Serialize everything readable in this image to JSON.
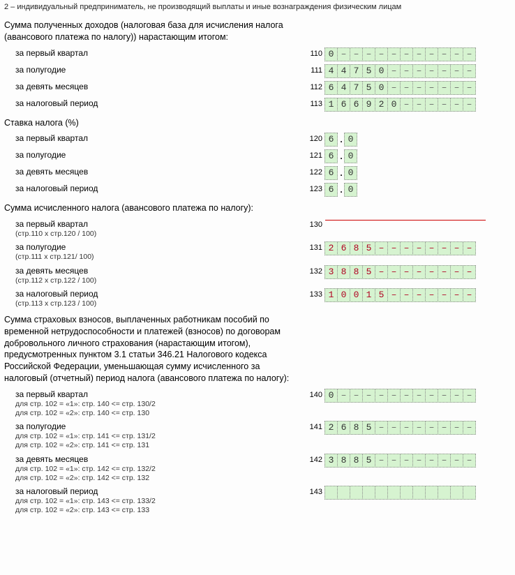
{
  "top_note": "2 – индивидуальный предприниматель, не производящий выплаты и иные вознаграждения физическим лицам",
  "sections": {
    "income": {
      "title": "Сумма полученных доходов (налоговая база для исчисления налога (авансового платежа по налогу)) нарастающим итогом:",
      "rows": [
        {
          "label": "за первый квартал",
          "code": "110",
          "digits": [
            "0",
            "–",
            "–",
            "–",
            "–",
            "–",
            "–",
            "–",
            "–",
            "–",
            "–",
            "–"
          ]
        },
        {
          "label": "за полугодие",
          "code": "111",
          "digits": [
            "4",
            "4",
            "7",
            "5",
            "0",
            "–",
            "–",
            "–",
            "–",
            "–",
            "–",
            "–"
          ]
        },
        {
          "label": "за девять месяцев",
          "code": "112",
          "digits": [
            "6",
            "4",
            "7",
            "5",
            "0",
            "–",
            "–",
            "–",
            "–",
            "–",
            "–",
            "–"
          ]
        },
        {
          "label": "за налоговый период",
          "code": "113",
          "digits": [
            "1",
            "6",
            "6",
            "9",
            "2",
            "0",
            "–",
            "–",
            "–",
            "–",
            "–",
            "–"
          ]
        }
      ]
    },
    "rate": {
      "title": "Ставка налога (%)",
      "rows": [
        {
          "label": "за первый квартал",
          "code": "120",
          "int": "6",
          "frac": "0"
        },
        {
          "label": "за полугодие",
          "code": "121",
          "int": "6",
          "frac": "0"
        },
        {
          "label": "за девять месяцев",
          "code": "122",
          "int": "6",
          "frac": "0"
        },
        {
          "label": "за налоговый период",
          "code": "123",
          "int": "6",
          "frac": "0"
        }
      ]
    },
    "tax": {
      "title": "Сумма исчисленного налога (авансового платежа по налогу):",
      "rows": [
        {
          "label": "за первый квартал",
          "sub": "(стр.110 x стр.120 / 100)",
          "code": "130",
          "redline": true
        },
        {
          "label": "за полугодие",
          "sub": "(стр.111 x стр.121/ 100)",
          "code": "131",
          "digits": [
            "2",
            "6",
            "8",
            "5",
            "–",
            "–",
            "–",
            "–",
            "–",
            "–",
            "–",
            "–"
          ],
          "red": true
        },
        {
          "label": "за девять месяцев",
          "sub": "(стр.112 x стр.122 / 100)",
          "code": "132",
          "digits": [
            "3",
            "8",
            "8",
            "5",
            "–",
            "–",
            "–",
            "–",
            "–",
            "–",
            "–",
            "–"
          ],
          "red": true
        },
        {
          "label": "за налоговый период",
          "sub": "(стр.113 x стр.123 / 100)",
          "code": "133",
          "digits": [
            "1",
            "0",
            "0",
            "1",
            "5",
            "–",
            "–",
            "–",
            "–",
            "–",
            "–",
            "–"
          ],
          "red": true
        }
      ]
    },
    "ins": {
      "title": "Сумма страховых взносов, выплаченных работникам пособий по временной нетрудоспособности и платежей (взносов) по договорам добровольного личного страхования (нарастающим итогом), предусмотренных пунктом 3.1 статьи 346.21 Налогового кодекса Российской Федерации, уменьшающая сумму исчисленного за налоговый (отчетный) период налога (авансового платежа по налогу):",
      "rows": [
        {
          "label": "за первый квартал",
          "sub": "для стр. 102 = «1»: стр. 140 <= стр. 130/2\nдля стр. 102 = «2»: стр. 140 <= стр. 130",
          "code": "140",
          "digits": [
            "0",
            "–",
            "–",
            "–",
            "–",
            "–",
            "–",
            "–",
            "–",
            "–",
            "–",
            "–"
          ]
        },
        {
          "label": "за полугодие",
          "sub": "для стр. 102 = «1»: стр. 141 <= стр. 131/2\nдля стр. 102 = «2»: стр. 141 <= стр. 131",
          "code": "141",
          "digits": [
            "2",
            "6",
            "8",
            "5",
            "–",
            "–",
            "–",
            "–",
            "–",
            "–",
            "–",
            "–"
          ]
        },
        {
          "label": "за девять месяцев",
          "sub": "для стр. 102 = «1»: стр. 142 <= стр. 132/2\nдля стр. 102 = «2»: стр. 142 <= стр. 132",
          "code": "142",
          "digits": [
            "3",
            "8",
            "8",
            "5",
            "–",
            "–",
            "–",
            "–",
            "–",
            "–",
            "–",
            "–"
          ]
        },
        {
          "label": "за налоговый период",
          "sub": "для стр. 102 = «1»: стр. 143 <= стр. 133/2\nдля стр. 102 = «2»: стр. 143 <= стр. 133",
          "code": "143",
          "digits": [
            "",
            "",
            "",
            "",
            "",
            "",
            "",
            "",
            "",
            "",
            "",
            ""
          ]
        }
      ]
    }
  }
}
